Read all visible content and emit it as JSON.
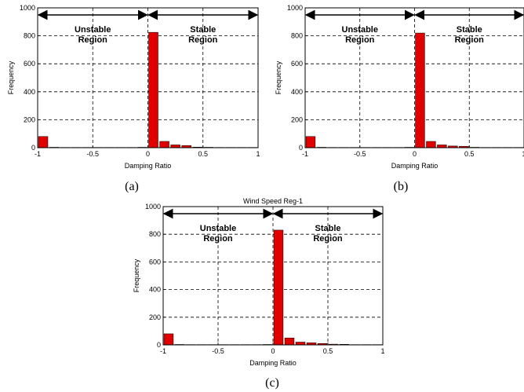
{
  "chart_data": [
    {
      "type": "bar",
      "caption": "(a)",
      "title": "",
      "xlabel": "Damping Ratio",
      "ylabel": "Frequency",
      "xlim": [
        -1,
        1
      ],
      "ylim": [
        0,
        1000
      ],
      "xticks": [
        "-1",
        "-0.5",
        "0",
        "0.5",
        "1"
      ],
      "yticks": [
        "0",
        "200",
        "400",
        "600",
        "800",
        "1000"
      ],
      "grid": true,
      "bar_color": "#e00000",
      "bars": [
        {
          "x": -0.95,
          "y": 80
        },
        {
          "x": -0.85,
          "y": 3
        },
        {
          "x": -0.75,
          "y": 2
        },
        {
          "x": -0.65,
          "y": 2
        },
        {
          "x": -0.55,
          "y": 2
        },
        {
          "x": -0.45,
          "y": 2
        },
        {
          "x": -0.35,
          "y": 2
        },
        {
          "x": -0.25,
          "y": 2
        },
        {
          "x": -0.15,
          "y": 2
        },
        {
          "x": -0.05,
          "y": 3
        },
        {
          "x": 0.05,
          "y": 825
        },
        {
          "x": 0.15,
          "y": 45
        },
        {
          "x": 0.25,
          "y": 20
        },
        {
          "x": 0.35,
          "y": 15
        },
        {
          "x": 0.45,
          "y": 4
        },
        {
          "x": 0.55,
          "y": 3
        },
        {
          "x": 0.65,
          "y": 2
        },
        {
          "x": 0.75,
          "y": 2
        },
        {
          "x": 0.85,
          "y": 2
        },
        {
          "x": 0.95,
          "y": 2
        }
      ],
      "annotations": {
        "unstable": [
          "Unstable",
          "Region"
        ],
        "stable": [
          "Stable",
          "Region"
        ]
      }
    },
    {
      "type": "bar",
      "caption": "(b)",
      "title": "",
      "xlabel": "Damping Ratio",
      "ylabel": "Frequency",
      "xlim": [
        -1,
        1
      ],
      "ylim": [
        0,
        1000
      ],
      "xticks": [
        "-1",
        "-0.5",
        "0",
        "0.5",
        "1"
      ],
      "yticks": [
        "0",
        "200",
        "400",
        "600",
        "800",
        "1000"
      ],
      "grid": true,
      "bar_color": "#e00000",
      "bars": [
        {
          "x": -0.95,
          "y": 80
        },
        {
          "x": -0.85,
          "y": 3
        },
        {
          "x": -0.75,
          "y": 2
        },
        {
          "x": -0.65,
          "y": 2
        },
        {
          "x": -0.55,
          "y": 2
        },
        {
          "x": -0.45,
          "y": 2
        },
        {
          "x": -0.35,
          "y": 2
        },
        {
          "x": -0.25,
          "y": 2
        },
        {
          "x": -0.15,
          "y": 2
        },
        {
          "x": -0.05,
          "y": 3
        },
        {
          "x": 0.05,
          "y": 820
        },
        {
          "x": 0.15,
          "y": 45
        },
        {
          "x": 0.25,
          "y": 20
        },
        {
          "x": 0.35,
          "y": 12
        },
        {
          "x": 0.45,
          "y": 10
        },
        {
          "x": 0.55,
          "y": 3
        },
        {
          "x": 0.65,
          "y": 2
        },
        {
          "x": 0.75,
          "y": 2
        },
        {
          "x": 0.85,
          "y": 2
        },
        {
          "x": 0.95,
          "y": 2
        }
      ],
      "annotations": {
        "unstable": [
          "Unstable",
          "Region"
        ],
        "stable": [
          "Stable",
          "Region"
        ]
      }
    },
    {
      "type": "bar",
      "caption": "(c)",
      "title": "Wind Speed Reg-1",
      "xlabel": "Damping Ratio",
      "ylabel": "Frequency",
      "xlim": [
        -1,
        1
      ],
      "ylim": [
        0,
        1000
      ],
      "xticks": [
        "-1",
        "-0.5",
        "0",
        "0.5",
        "1"
      ],
      "yticks": [
        "0",
        "200",
        "400",
        "600",
        "800",
        "1000"
      ],
      "grid": true,
      "bar_color": "#e00000",
      "bars": [
        {
          "x": -0.95,
          "y": 80
        },
        {
          "x": -0.85,
          "y": 3
        },
        {
          "x": -0.75,
          "y": 2
        },
        {
          "x": -0.65,
          "y": 2
        },
        {
          "x": -0.55,
          "y": 2
        },
        {
          "x": -0.45,
          "y": 2
        },
        {
          "x": -0.35,
          "y": 2
        },
        {
          "x": -0.25,
          "y": 2
        },
        {
          "x": -0.15,
          "y": 2
        },
        {
          "x": -0.05,
          "y": 3
        },
        {
          "x": 0.05,
          "y": 830
        },
        {
          "x": 0.15,
          "y": 50
        },
        {
          "x": 0.25,
          "y": 20
        },
        {
          "x": 0.35,
          "y": 15
        },
        {
          "x": 0.45,
          "y": 10
        },
        {
          "x": 0.55,
          "y": 5
        },
        {
          "x": 0.65,
          "y": 4
        },
        {
          "x": 0.75,
          "y": 2
        },
        {
          "x": 0.85,
          "y": 2
        },
        {
          "x": 0.95,
          "y": 2
        }
      ],
      "annotations": {
        "unstable": [
          "Unstable",
          "Region"
        ],
        "stable": [
          "Stable",
          "Region"
        ]
      }
    }
  ]
}
